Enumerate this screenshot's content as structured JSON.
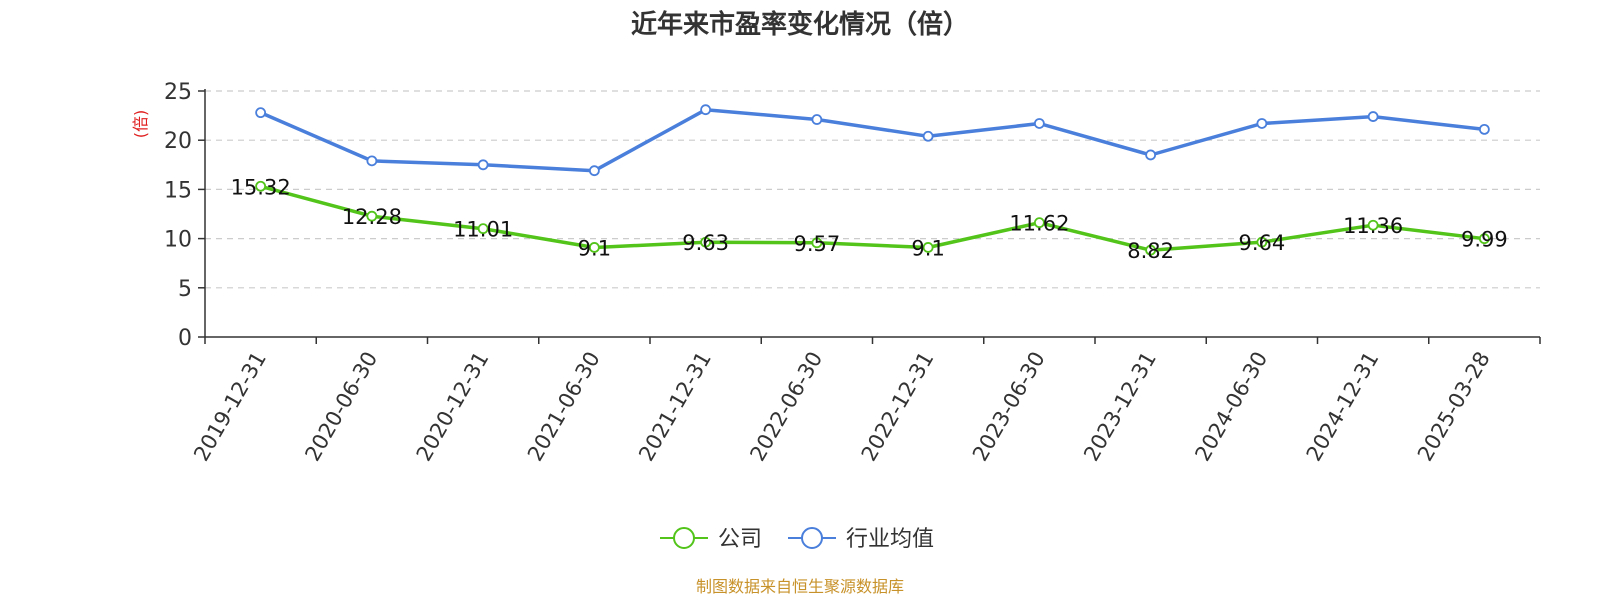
{
  "chart_data": {
    "type": "line",
    "title": "近年来市盈率变化情况（倍）",
    "ylabel": "(倍)",
    "ylim": [
      0,
      25
    ],
    "yticks": [
      0,
      5,
      10,
      15,
      20,
      25
    ],
    "grid": true,
    "legend_position": "bottom",
    "categories": [
      "2019-12-31",
      "2020-06-30",
      "2020-12-31",
      "2021-06-30",
      "2021-12-31",
      "2022-06-30",
      "2022-12-31",
      "2023-06-30",
      "2023-12-31",
      "2024-06-30",
      "2024-12-31",
      "2025-03-28"
    ],
    "series": [
      {
        "name": "公司",
        "color": "#52c41a",
        "values": [
          15.32,
          12.28,
          11.01,
          9.1,
          9.63,
          9.57,
          9.1,
          11.62,
          8.82,
          9.64,
          11.36,
          9.99
        ],
        "data_labels": [
          "15.32",
          "12.28",
          "11.01",
          "9.1",
          "9.63",
          "9.57",
          "9.1",
          "11.62",
          "8.82",
          "9.64",
          "11.36",
          "9.99"
        ]
      },
      {
        "name": "行业均值",
        "color": "#4a7fdc",
        "values": [
          22.8,
          17.9,
          17.5,
          16.9,
          23.1,
          22.1,
          20.4,
          21.7,
          18.5,
          21.7,
          22.4,
          21.1
        ]
      }
    ],
    "ylabel_color": "#e02020",
    "source_color": "#c8922a"
  },
  "footer": {
    "source": "制图数据来自恒生聚源数据库"
  }
}
